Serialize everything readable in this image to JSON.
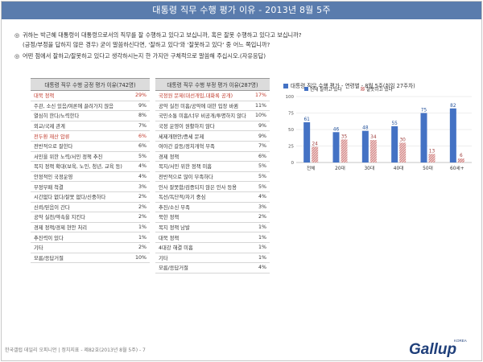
{
  "header": {
    "title": "대통령 직무 수행 평가 이유 - 2013년 8월 5주"
  },
  "questions": {
    "q1_line1": "귀하는 박근혜 대통령이 대통령으로서의 직무를 잘 수행하고 있다고 보십니까, 혹은 잘못 수행하고 있다고 보십니까?",
    "q1_line2": "(긍정/부정을 답하지 않은 경우) 굳이 말씀하신다면, '잘하고 있다'와 '잘못하고 있다' 중 어느 쪽입니까?",
    "q2_line1": "어떤 점에서 잘하고/잘못하고 있다고 생각하시는지 한 가지만 구체적으로 말씀해 주십시오.(자유응답)"
  },
  "positive": {
    "header": "대통령 직무 수행 긍정 평가 이유(742명)",
    "rows": [
      {
        "label": "대북 정책",
        "value": "29%",
        "hl": true
      },
      {
        "label": "주관, 소신 있음/여론에 끌려가지 않음",
        "value": "9%"
      },
      {
        "label": "열심히 한다/노력한다",
        "value": "8%"
      },
      {
        "label": "외교/국제 관계",
        "value": "7%"
      },
      {
        "label": "전두환 재산 압류",
        "value": "6%",
        "hl": true
      },
      {
        "label": "전반적으로 잘한다",
        "value": "6%"
      },
      {
        "label": "서민을 위한 노력/서민 정책 추진",
        "value": "5%"
      },
      {
        "label": "복지 정책 확대(보육, 노인, 청년, 교육 등)",
        "value": "4%"
      },
      {
        "label": "안정적인 국정운영",
        "value": "4%"
      },
      {
        "label": "부정부패 척결",
        "value": "3%"
      },
      {
        "label": "시간없다 없다/잘못 없다/신중하다",
        "value": "2%"
      },
      {
        "label": "신뢰/믿음이 간다",
        "value": "2%"
      },
      {
        "label": "공약 실천/약속을 지킨다",
        "value": "2%"
      },
      {
        "label": "경제 정책/경제 현안 처리",
        "value": "1%"
      },
      {
        "label": "추진력이 있다",
        "value": "1%"
      },
      {
        "label": "기타",
        "value": "2%"
      },
      {
        "label": "모름/응답거절",
        "value": "10%"
      }
    ]
  },
  "negative": {
    "header": "대통령 직무 수행 부정 평가 이유(287명)",
    "rows": [
      {
        "label": "국정원 문제(대선개입,대화록 공개)",
        "value": "17%",
        "hl": true
      },
      {
        "label": "공약 실천 미흡/공약에 대한 입장 바뀜",
        "value": "11%"
      },
      {
        "label": "국민소통 미흡/너무 비공개/투명하지 않다",
        "value": "10%"
      },
      {
        "label": "국정 운영이 원활하지 않다",
        "value": "9%"
      },
      {
        "label": "세제개편안/증세 문제",
        "value": "9%"
      },
      {
        "label": "여야간 갈등/정치개혁 부족",
        "value": "7%"
      },
      {
        "label": "경제 정책",
        "value": "6%"
      },
      {
        "label": "복지/서민 위한 정책 미흡",
        "value": "5%"
      },
      {
        "label": "전반적으로 많이 부족하다",
        "value": "5%"
      },
      {
        "label": "인사 잘못함/검증되지 않은 인사 등용",
        "value": "5%"
      },
      {
        "label": "독선/독단적/자기 중심",
        "value": "4%"
      },
      {
        "label": "추진/소신 부족",
        "value": "3%"
      },
      {
        "label": "북한 정책",
        "value": "2%"
      },
      {
        "label": "복지 정책 남발",
        "value": "1%"
      },
      {
        "label": "대북 정책",
        "value": "1%"
      },
      {
        "label": "4대강 해결 미흡",
        "value": "1%"
      },
      {
        "label": "기타",
        "value": "1%"
      },
      {
        "label": "모름/응답거절",
        "value": "4%"
      }
    ]
  },
  "chart_data": {
    "type": "bar",
    "title": "대통령 직무 수행 평가 - 연령별 - 8월 5주(취임 27주차)",
    "categories": [
      "전체",
      "20대",
      "30대",
      "40대",
      "50대",
      "60세+"
    ],
    "series": [
      {
        "name": "현재 잘하고 있다",
        "values": [
          61,
          46,
          48,
          55,
          75,
          82
        ],
        "color": "#4472c4"
      },
      {
        "name": "잘못하고 있다",
        "values": [
          24,
          35,
          34,
          30,
          13,
          6
        ],
        "color": "#d99594"
      }
    ],
    "ylim": [
      0,
      100
    ],
    "yticks": [
      0,
      25,
      50,
      75,
      100
    ],
    "grid": true,
    "legend": "top"
  },
  "footer": {
    "text": "한국갤럽 데일리 오피니언 | 정치지표 - 제82호(2013년 8월 5주) - 7"
  },
  "logo": {
    "text": "Gallup",
    "sup": "KOREA"
  }
}
